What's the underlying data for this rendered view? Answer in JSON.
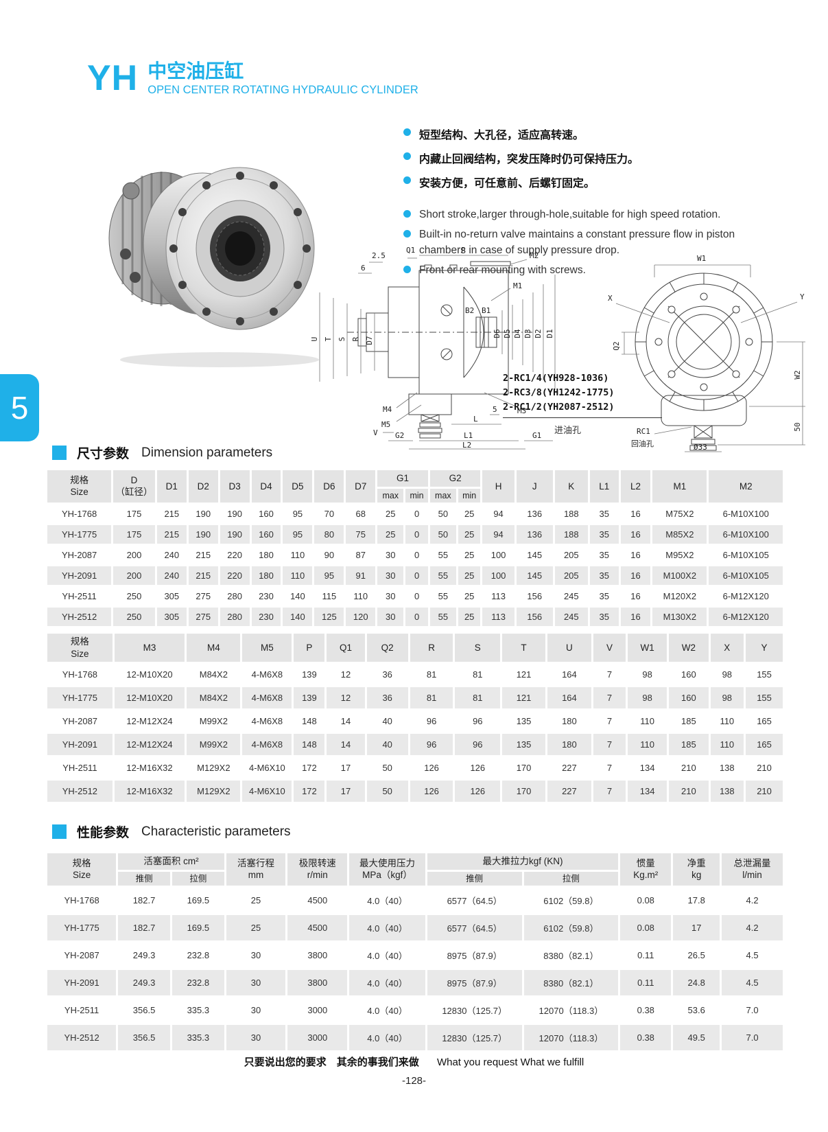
{
  "header": {
    "logo": "YH",
    "title_zh": "中空油压缸",
    "title_en": "OPEN CENTER ROTATING HYDRAULIC CYLINDER",
    "side_tab": "5"
  },
  "accent_color": "#1fb0e8",
  "features_zh": [
    "短型结构、大孔径，适应高转速。",
    "内藏止回阀结构，突发压降时仍可保持压力。",
    "安装方便，可任意前、后螺钉固定。"
  ],
  "features_en": [
    "Short stroke,larger through-hole,suitable for high speed rotation.",
    "Built-in no-return valve  maintains a constant pressure flow in piston chambers in case of supply pressure drop.",
    "Front or rear mounting with screws."
  ],
  "drawing": {
    "left": {
      "n25": "2.5",
      "n6": "6",
      "q1": "Q1",
      "p": "P",
      "m2": "M2",
      "m1": "M1",
      "b2": "B2",
      "b1": "B1",
      "u": "U",
      "t": "T",
      "s": "S",
      "r": "R",
      "d7": "D7",
      "d6": "D6",
      "d5": "D5",
      "d4": "D4",
      "d3": "D3",
      "d2": "D2",
      "d1": "D1",
      "m4": "M4",
      "m5": "M5",
      "m3": "M3",
      "n5": "5",
      "v": "V",
      "l": "L",
      "g2": "G2",
      "l1": "L1",
      "g1": "G1",
      "l2": "L2"
    },
    "right": {
      "w1": "W1",
      "x": "X",
      "y": "Y",
      "q2": "Q2",
      "w2": "W2",
      "n50": "50",
      "rc1": "RC1",
      "return_port": "回油孔",
      "dia": "Ø33"
    },
    "notes": [
      "2-RC1/4(YH928-1036)",
      "2-RC3/8(YH1242-1775)",
      "2-RC1/2(YH2087-2512)"
    ],
    "inlet_port": "进油孔"
  },
  "sections": {
    "dimension_zh": "尺寸参数",
    "dimension_en": "Dimension parameters",
    "characteristic_zh": "性能参数",
    "characteristic_en": "Characteristic parameters"
  },
  "dim_table1": {
    "h_size": "规格\nSize",
    "h_d": "D\n（缸径）",
    "h_d1": "D1",
    "h_d2": "D2",
    "h_d3": "D3",
    "h_d4": "D4",
    "h_d5": "D5",
    "h_d6": "D6",
    "h_d7": "D7",
    "h_g1": "G1",
    "h_g2": "G2",
    "h_max": "max",
    "h_min": "min",
    "h_h": "H",
    "h_j": "J",
    "h_k": "K",
    "h_l1": "L1",
    "h_l2": "L2",
    "h_m1": "M1",
    "h_m2": "M2",
    "rows": [
      [
        "YH-1768",
        175,
        215,
        190,
        190,
        160,
        95,
        70,
        68,
        25,
        0,
        50,
        25,
        94,
        136,
        188,
        35,
        16,
        "M75X2",
        "6-M10X100"
      ],
      [
        "YH-1775",
        175,
        215,
        190,
        190,
        160,
        95,
        80,
        75,
        25,
        0,
        50,
        25,
        94,
        136,
        188,
        35,
        16,
        "M85X2",
        "6-M10X100"
      ],
      [
        "YH-2087",
        200,
        240,
        215,
        220,
        180,
        110,
        90,
        87,
        30,
        0,
        55,
        25,
        100,
        145,
        205,
        35,
        16,
        "M95X2",
        "6-M10X105"
      ],
      [
        "YH-2091",
        200,
        240,
        215,
        220,
        180,
        110,
        95,
        91,
        30,
        0,
        55,
        25,
        100,
        145,
        205,
        35,
        16,
        "M100X2",
        "6-M10X105"
      ],
      [
        "YH-2511",
        250,
        305,
        275,
        280,
        230,
        140,
        115,
        110,
        30,
        0,
        55,
        25,
        113,
        156,
        245,
        35,
        16,
        "M120X2",
        "6-M12X120"
      ],
      [
        "YH-2512",
        250,
        305,
        275,
        280,
        230,
        140,
        125,
        120,
        30,
        0,
        55,
        25,
        113,
        156,
        245,
        35,
        16,
        "M130X2",
        "6-M12X120"
      ]
    ]
  },
  "dim_table2": {
    "h_size": "规格\nSize",
    "h_m3": "M3",
    "h_m4": "M4",
    "h_m5": "M5",
    "h_p": "P",
    "h_q1": "Q1",
    "h_q2": "Q2",
    "h_r": "R",
    "h_s": "S",
    "h_t": "T",
    "h_u": "U",
    "h_v": "V",
    "h_w1": "W1",
    "h_w2": "W2",
    "h_x": "X",
    "h_y": "Y",
    "rows": [
      [
        "YH-1768",
        "12-M10X20",
        "M84X2",
        "4-M6X8",
        139,
        12,
        36,
        81,
        81,
        121,
        164,
        7,
        98,
        160,
        98,
        155
      ],
      [
        "YH-1775",
        "12-M10X20",
        "M84X2",
        "4-M6X8",
        139,
        12,
        36,
        81,
        81,
        121,
        164,
        7,
        98,
        160,
        98,
        155
      ],
      [
        "YH-2087",
        "12-M12X24",
        "M99X2",
        "4-M6X8",
        148,
        14,
        40,
        96,
        96,
        135,
        180,
        7,
        110,
        185,
        110,
        165
      ],
      [
        "YH-2091",
        "12-M12X24",
        "M99X2",
        "4-M6X8",
        148,
        14,
        40,
        96,
        96,
        135,
        180,
        7,
        110,
        185,
        110,
        165
      ],
      [
        "YH-2511",
        "12-M16X32",
        "M129X2",
        "4-M6X10",
        172,
        17,
        50,
        126,
        126,
        170,
        227,
        7,
        134,
        210,
        138,
        210
      ],
      [
        "YH-2512",
        "12-M16X32",
        "M129X2",
        "4-M6X10",
        172,
        17,
        50,
        126,
        126,
        170,
        227,
        7,
        134,
        210,
        138,
        210
      ]
    ]
  },
  "char_table": {
    "h_size": "规格\nSize",
    "h_piston_area": "活塞面积 cm²",
    "h_push": "推侧",
    "h_pull": "拉侧",
    "h_stroke": "活塞行程\nmm",
    "h_speed": "极限转速\nr/min",
    "h_pressure": "最大使用压力\nMPa（kgf）",
    "h_force": "最大推拉力kgf (KN)",
    "h_inertia": "惯量\nKg.m²",
    "h_weight": "净重\nkg",
    "h_leak": "总泄漏量\nl/min",
    "rows": [
      [
        "YH-1768",
        "182.7",
        "169.5",
        25,
        4500,
        "4.0（40）",
        "6577（64.5）",
        "6102（59.8）",
        "0.08",
        "17.8",
        "4.2"
      ],
      [
        "YH-1775",
        "182.7",
        "169.5",
        25,
        4500,
        "4.0（40）",
        "6577（64.5）",
        "6102（59.8）",
        "0.08",
        "17",
        "4.2"
      ],
      [
        "YH-2087",
        "249.3",
        "232.8",
        30,
        3800,
        "4.0（40）",
        "8975（87.9）",
        "8380（82.1）",
        "0.11",
        "26.5",
        "4.5"
      ],
      [
        "YH-2091",
        "249.3",
        "232.8",
        30,
        3800,
        "4.0（40）",
        "8975（87.9）",
        "8380（82.1）",
        "0.11",
        "24.8",
        "4.5"
      ],
      [
        "YH-2511",
        "356.5",
        "335.3",
        30,
        3000,
        "4.0（40）",
        "12830（125.7）",
        "12070（118.3）",
        "0.38",
        "53.6",
        "7.0"
      ],
      [
        "YH-2512",
        "356.5",
        "335.3",
        30,
        3000,
        "4.0（40）",
        "12830（125.7）",
        "12070（118.3）",
        "0.38",
        "49.5",
        "7.0"
      ]
    ]
  },
  "footer": {
    "zh": "只要说出您的要求　其余的事我们来做",
    "en": "What you request  What we fulfill",
    "page_number": "-128-"
  }
}
